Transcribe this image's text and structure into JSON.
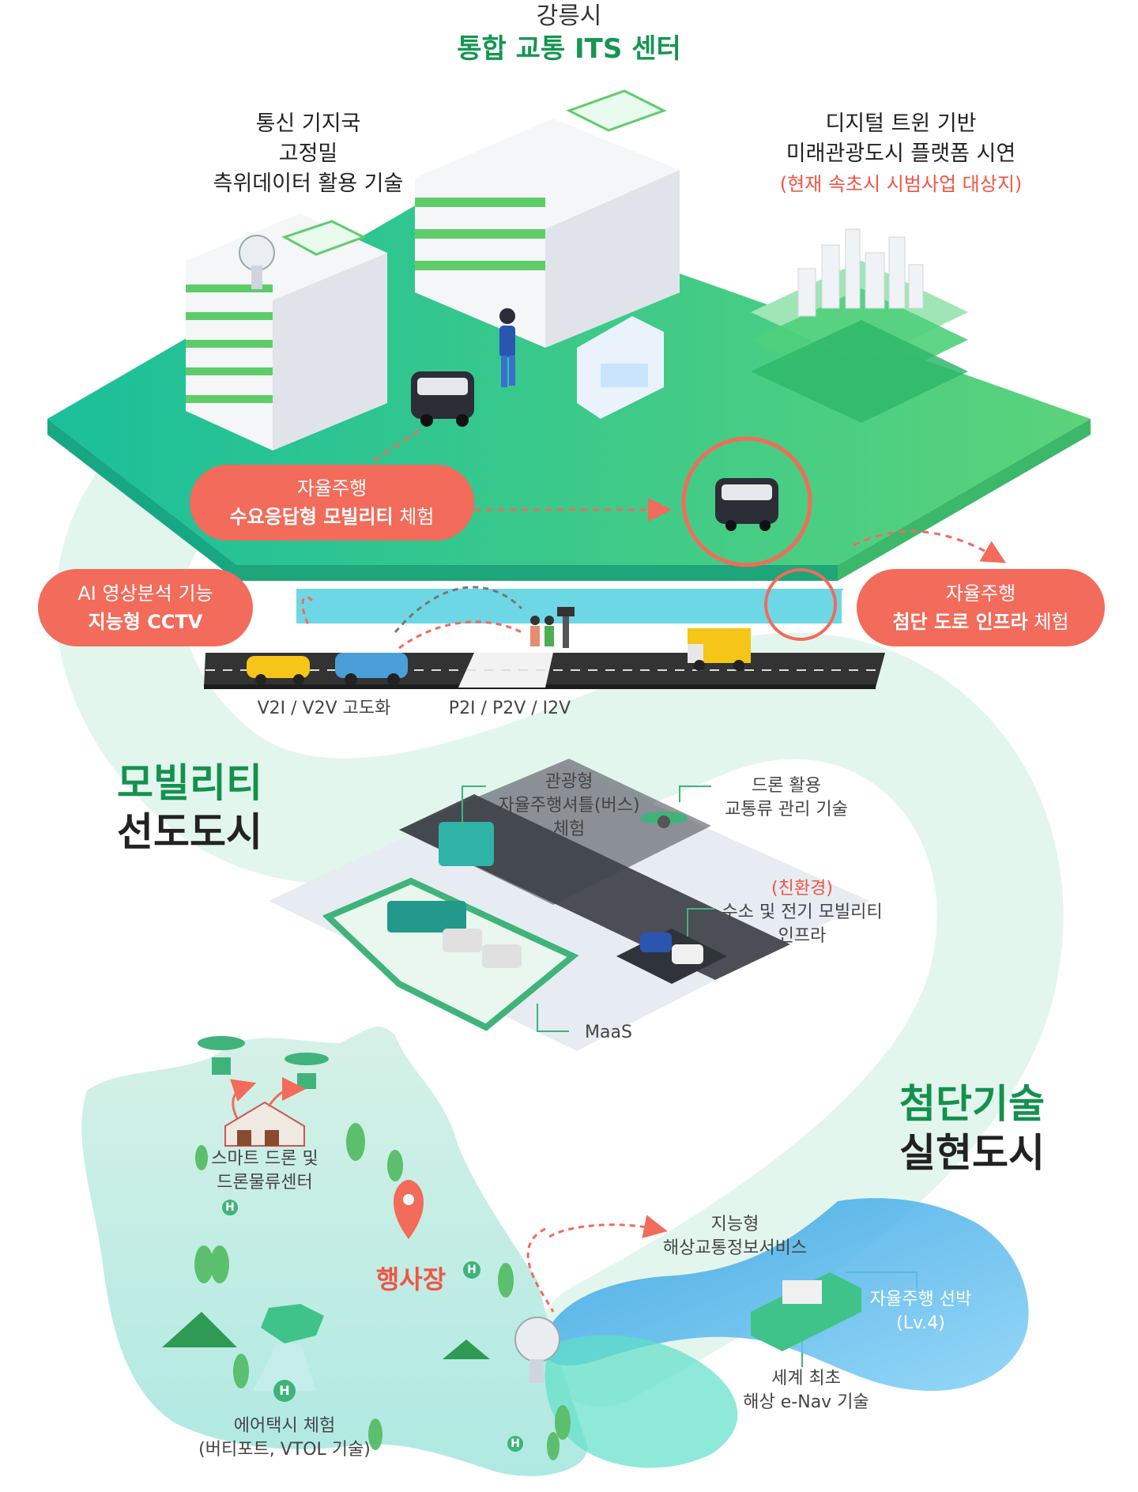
{
  "header": {
    "city": "강릉시",
    "title": "통합 교통 ITS 센터"
  },
  "labels": {
    "comm_line1": "통신 기지국",
    "comm_line2": "고정밀",
    "comm_line3": "측위데이터 활용 기술",
    "twin_line1": "디지털 트윈 기반",
    "twin_line2": "미래관광도시 플랫폼 시연",
    "twin_note": "(현재 속초시 시범사업 대상지)",
    "v2x": "V2I / V2V 고도화",
    "p2x": "P2I / P2V / I2V",
    "shuttle_line1": "관광형",
    "shuttle_line2": "자율주행셔틀(버스)",
    "shuttle_line3": "체험",
    "drone_traffic_line1": "드론 활용",
    "drone_traffic_line2": "교통류 관리 기술",
    "eco_note": "(친환경)",
    "eco_line1": "수소 및 전기 모빌리티",
    "eco_line2": "인프라",
    "maas": "MaaS",
    "drone_center_line1": "스마트 드론 및",
    "drone_center_line2": "드론물류센터",
    "venue": "행사장",
    "airtaxi_line1": "에어택시 체험",
    "airtaxi_line2": "(버티포트, VTOL 기술)",
    "marine_line1": "지능형",
    "marine_line2": "해상교통정보서비스",
    "ship_line1": "자율주행 선박",
    "ship_line2": "(Lv.4)",
    "enav_line1": "세계 최초",
    "enav_line2": "해상 e-Nav 기술",
    "h_mark": "H"
  },
  "pills": {
    "drt_line1": "자율주행",
    "drt_line2_bold": "수요응답형 모빌리티",
    "drt_line2_rest": " 체험",
    "cctv_line1": "AI 영상분석 기능",
    "cctv_line2": "지능형 CCTV",
    "road_line1": "자율주행",
    "road_line2_bold": "첨단 도로 인프라",
    "road_line2_rest": " 체험"
  },
  "sections": {
    "mobility_line1": "모빌리티",
    "mobility_line2": "선도도시",
    "tech_line1": "첨단기술",
    "tech_line2": "실현도시"
  },
  "colors": {
    "brand_green": "#14914f",
    "accent_red": "#f26b5b",
    "platform_green": "#2fc58a",
    "sea_blue": "#3fa6e0"
  }
}
